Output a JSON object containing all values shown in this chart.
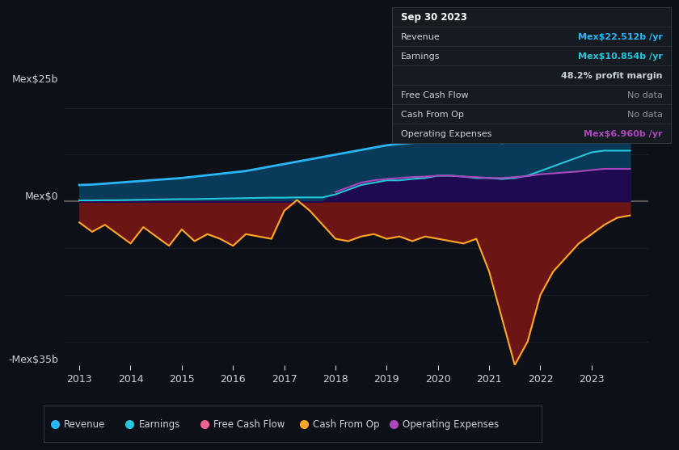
{
  "bg_color": "#0d1117",
  "ylabel_top": "Mex$25b",
  "ylabel_zero": "Mex$0",
  "ylabel_bottom": "-Mex$35b",
  "ylim_top": 25,
  "ylim_bottom": -35,
  "revenue_color": "#29b6f6",
  "earnings_color": "#26c6da",
  "free_cash_flow_color": "#f06292",
  "cash_from_op_color": "#ffa726",
  "op_expenses_color": "#ab47bc",
  "tooltip_bg": "#161b22",
  "tooltip_border": "#30363d",
  "grid_color": "#21262d",
  "text_color": "#c9d1d9",
  "nodata_color": "#8b949e",
  "legend_border": "#30363d",
  "x_ticks": [
    2013,
    2014,
    2015,
    2016,
    2017,
    2018,
    2019,
    2020,
    2021,
    2022,
    2023
  ],
  "tooltip_lines": [
    {
      "left": "Sep 30 2023",
      "right": "",
      "lcolor": "#ffffff",
      "rcolor": "#ffffff",
      "header": true
    },
    {
      "left": "Revenue",
      "right": "Mex$22.512b /yr",
      "lcolor": "#c9d1d9",
      "rcolor": "#29b6f6",
      "header": false
    },
    {
      "left": "Earnings",
      "right": "Mex$10.854b /yr",
      "lcolor": "#c9d1d9",
      "rcolor": "#26c6da",
      "header": false
    },
    {
      "left": "",
      "right": "48.2% profit margin",
      "lcolor": "",
      "rcolor": "#c9d1d9",
      "header": false
    },
    {
      "left": "Free Cash Flow",
      "right": "No data",
      "lcolor": "#c9d1d9",
      "rcolor": "#8b949e",
      "header": false
    },
    {
      "left": "Cash From Op",
      "right": "No data",
      "lcolor": "#c9d1d9",
      "rcolor": "#8b949e",
      "header": false
    },
    {
      "left": "Operating Expenses",
      "right": "Mex$6.960b /yr",
      "lcolor": "#c9d1d9",
      "rcolor": "#ab47bc",
      "header": false
    }
  ],
  "legend_items": [
    {
      "label": "Revenue",
      "color": "#29b6f6"
    },
    {
      "label": "Earnings",
      "color": "#26c6da"
    },
    {
      "label": "Free Cash Flow",
      "color": "#f06292"
    },
    {
      "label": "Cash From Op",
      "color": "#ffa726"
    },
    {
      "label": "Operating Expenses",
      "color": "#ab47bc"
    }
  ]
}
